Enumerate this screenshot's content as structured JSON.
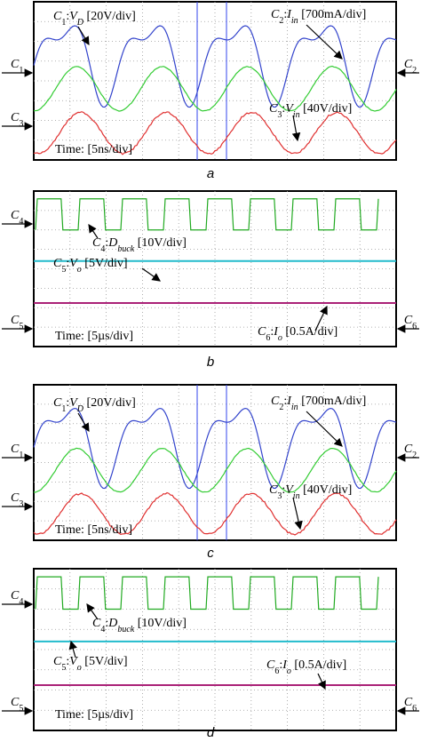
{
  "panels": [
    {
      "caption": "a",
      "labels": [
        {
          "parts": [
            {
              "t": "C",
              "i": true
            },
            {
              "t": "1",
              "sub": true
            },
            {
              "t": ":"
            },
            {
              "t": "V",
              "i": true
            },
            {
              "t": "D",
              "sub": true,
              "i": true
            },
            {
              "t": " [20V/div]"
            }
          ]
        },
        {
          "parts": [
            {
              "t": "C",
              "i": true
            },
            {
              "t": "2",
              "sub": true
            },
            {
              "t": ":"
            },
            {
              "t": "I",
              "i": true
            },
            {
              "t": "in",
              "sub": true,
              "i": true
            },
            {
              "t": " [700mA/div]"
            }
          ]
        },
        {
          "parts": [
            {
              "t": "C",
              "i": true
            },
            {
              "t": "3",
              "sub": true
            },
            {
              "t": ":"
            },
            {
              "t": "V",
              "i": true
            },
            {
              "t": "in",
              "sub": true,
              "i": true
            },
            {
              "t": " [40V/div]"
            }
          ]
        },
        {
          "parts": [
            {
              "t": "Time: [5ns/div]"
            }
          ]
        }
      ],
      "side_labels": [
        {
          "parts": [
            {
              "t": "C",
              "i": true
            },
            {
              "t": "1",
              "sub": true
            }
          ]
        },
        {
          "parts": [
            {
              "t": "C",
              "i": true
            },
            {
              "t": "2",
              "sub": true
            }
          ]
        },
        {
          "parts": [
            {
              "t": "C",
              "i": true
            },
            {
              "t": "3",
              "sub": true
            }
          ]
        }
      ]
    },
    {
      "caption": "b",
      "labels": [
        {
          "parts": [
            {
              "t": "C",
              "i": true
            },
            {
              "t": "4",
              "sub": true
            },
            {
              "t": ":"
            },
            {
              "t": "D",
              "i": true
            },
            {
              "t": "buck",
              "sub": true,
              "i": true
            },
            {
              "t": " [10V/div]"
            }
          ]
        },
        {
          "parts": [
            {
              "t": "C",
              "i": true
            },
            {
              "t": "5",
              "sub": true
            },
            {
              "t": ":"
            },
            {
              "t": "V",
              "i": true
            },
            {
              "t": "o",
              "sub": true,
              "i": true
            },
            {
              "t": " [5V/div]"
            }
          ]
        },
        {
          "parts": [
            {
              "t": "Time: [5µs/div]"
            }
          ]
        },
        {
          "parts": [
            {
              "t": "C",
              "i": true
            },
            {
              "t": "6",
              "sub": true
            },
            {
              "t": ":"
            },
            {
              "t": "I",
              "i": true
            },
            {
              "t": "o",
              "sub": true,
              "i": true
            },
            {
              "t": " [0.5A/div]"
            }
          ]
        }
      ],
      "side_labels": [
        {
          "parts": [
            {
              "t": "C",
              "i": true
            },
            {
              "t": "4",
              "sub": true
            }
          ]
        },
        {
          "parts": [
            {
              "t": "C",
              "i": true
            },
            {
              "t": "5",
              "sub": true
            }
          ]
        },
        {
          "parts": [
            {
              "t": "C",
              "i": true
            },
            {
              "t": "6",
              "sub": true
            }
          ]
        }
      ]
    },
    {
      "caption": "c",
      "labels": [
        {
          "parts": [
            {
              "t": "C",
              "i": true
            },
            {
              "t": "1",
              "sub": true
            },
            {
              "t": ":"
            },
            {
              "t": "V",
              "i": true
            },
            {
              "t": "D",
              "sub": true,
              "i": true
            },
            {
              "t": " [20V/div]"
            }
          ]
        },
        {
          "parts": [
            {
              "t": "C",
              "i": true
            },
            {
              "t": "2",
              "sub": true
            },
            {
              "t": ":"
            },
            {
              "t": "I",
              "i": true
            },
            {
              "t": "in",
              "sub": true,
              "i": true
            },
            {
              "t": " [700mA/div]"
            }
          ]
        },
        {
          "parts": [
            {
              "t": "C",
              "i": true
            },
            {
              "t": "3",
              "sub": true
            },
            {
              "t": ":"
            },
            {
              "t": "V",
              "i": true
            },
            {
              "t": "in",
              "sub": true,
              "i": true
            },
            {
              "t": " [40V/div]"
            }
          ]
        },
        {
          "parts": [
            {
              "t": "Time: [5ns/div]"
            }
          ]
        }
      ],
      "side_labels": [
        {
          "parts": [
            {
              "t": "C",
              "i": true
            },
            {
              "t": "1",
              "sub": true
            }
          ]
        },
        {
          "parts": [
            {
              "t": "C",
              "i": true
            },
            {
              "t": "2",
              "sub": true
            }
          ]
        },
        {
          "parts": [
            {
              "t": "C",
              "i": true
            },
            {
              "t": "3",
              "sub": true
            }
          ]
        }
      ]
    },
    {
      "caption": "d",
      "labels": [
        {
          "parts": [
            {
              "t": "C",
              "i": true
            },
            {
              "t": "4",
              "sub": true
            },
            {
              "t": ":"
            },
            {
              "t": "D",
              "i": true
            },
            {
              "t": "buck",
              "sub": true,
              "i": true
            },
            {
              "t": " [10V/div]"
            }
          ]
        },
        {
          "parts": [
            {
              "t": "C",
              "i": true
            },
            {
              "t": "5",
              "sub": true
            },
            {
              "t": ":"
            },
            {
              "t": "V",
              "i": true
            },
            {
              "t": "o",
              "sub": true,
              "i": true
            },
            {
              "t": " [5V/div]"
            }
          ]
        },
        {
          "parts": [
            {
              "t": "Time: [5µs/div]"
            }
          ]
        },
        {
          "parts": [
            {
              "t": "C",
              "i": true
            },
            {
              "t": "6",
              "sub": true
            },
            {
              "t": ":"
            },
            {
              "t": "I",
              "i": true
            },
            {
              "t": "o",
              "sub": true,
              "i": true
            },
            {
              "t": " [0.5A/div]"
            }
          ]
        }
      ],
      "side_labels": [
        {
          "parts": [
            {
              "t": "C",
              "i": true
            },
            {
              "t": "4",
              "sub": true
            }
          ]
        },
        {
          "parts": [
            {
              "t": "C",
              "i": true
            },
            {
              "t": "5",
              "sub": true
            }
          ]
        },
        {
          "parts": [
            {
              "t": "C",
              "i": true
            },
            {
              "t": "6",
              "sub": true
            }
          ]
        }
      ]
    }
  ]
}
